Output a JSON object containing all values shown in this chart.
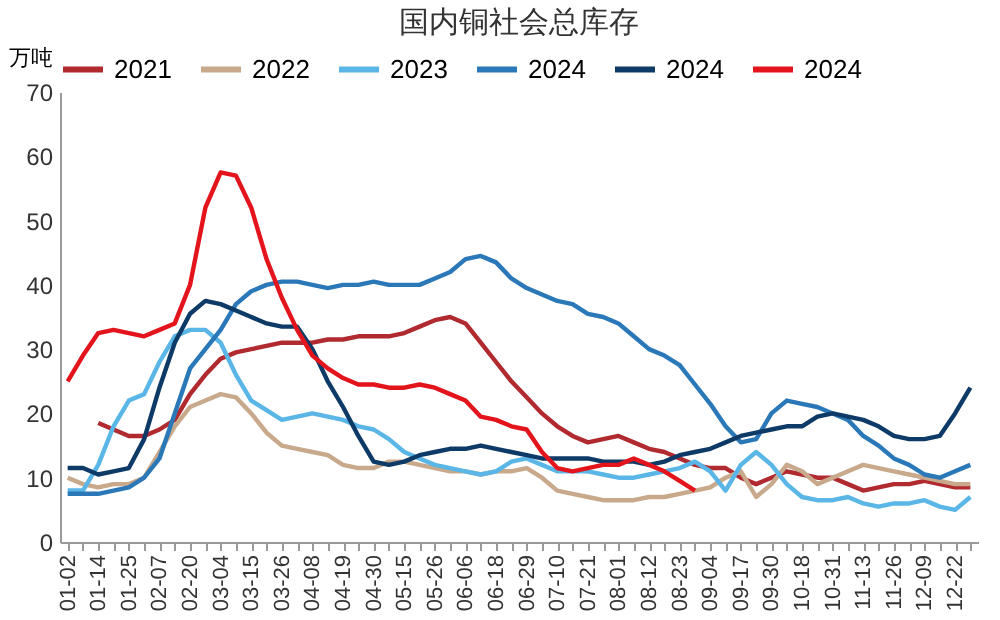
{
  "chart_data": {
    "type": "line",
    "title": "国内铜社会总库存",
    "ylabel": "万吨",
    "categories": [
      "01-02",
      null,
      "01-14",
      null,
      "01-25",
      null,
      "02-07",
      null,
      "02-20",
      null,
      "03-04",
      null,
      "03-15",
      null,
      "03-26",
      null,
      "04-08",
      null,
      "04-19",
      null,
      "04-30",
      null,
      "05-15",
      null,
      "05-26",
      null,
      "06-06",
      null,
      "06-18",
      null,
      "06-29",
      null,
      "07-10",
      null,
      "07-21",
      null,
      "08-01",
      null,
      "08-12",
      null,
      "08-23",
      null,
      "09-04",
      null,
      "09-17",
      null,
      "09-30",
      null,
      "10-18",
      null,
      "10-31",
      null,
      "11-13",
      null,
      "11-26",
      null,
      "12-09",
      null,
      "12-22",
      null
    ],
    "series": [
      {
        "name": "2021",
        "color": "#b02a30",
        "values": [
          null,
          null,
          18.5,
          17.5,
          16.5,
          16.5,
          17.5,
          19,
          23,
          26,
          28.5,
          29.5,
          30,
          30.5,
          31,
          31,
          31,
          31.5,
          31.5,
          32,
          32,
          32,
          32.5,
          33.5,
          34.5,
          35,
          34,
          31,
          28,
          25,
          22.5,
          20,
          18,
          16.5,
          15.5,
          16,
          16.5,
          15.5,
          14.5,
          14,
          13,
          12,
          11.5,
          11.5,
          10,
          9,
          10,
          11,
          10.5,
          10,
          10,
          9,
          8,
          8.5,
          9,
          9,
          9.5,
          9,
          8.5,
          8.5
        ]
      },
      {
        "name": "2022",
        "color": "#c8a98c",
        "values": [
          10,
          9,
          8.5,
          9,
          9,
          10,
          14,
          18,
          21,
          22,
          23,
          22.5,
          20,
          17,
          15,
          14.5,
          14,
          13.5,
          12,
          11.5,
          11.5,
          12.5,
          12.5,
          12,
          11.5,
          11,
          11,
          10.5,
          11,
          11,
          11.5,
          10,
          8,
          7.5,
          7,
          6.5,
          6.5,
          6.5,
          7,
          7,
          7.5,
          8,
          8.5,
          10,
          11,
          7,
          9,
          12,
          11,
          9,
          10,
          11,
          12,
          11.5,
          11,
          10.5,
          10,
          9.5,
          9,
          9
        ]
      },
      {
        "name": "2023",
        "color": "#5ab6e6",
        "values": [
          8,
          8,
          12,
          18,
          22,
          23,
          28,
          32,
          33,
          33,
          31,
          26,
          22,
          20.5,
          19,
          19.5,
          20,
          19.5,
          19,
          18,
          17.5,
          16,
          14,
          13,
          12,
          11.5,
          11,
          10.5,
          11,
          12.5,
          13,
          12,
          11,
          11,
          11,
          10.5,
          10,
          10,
          10.5,
          11,
          11.5,
          12.5,
          11,
          8,
          12,
          14,
          12,
          9,
          7,
          6.5,
          6.5,
          7,
          6,
          5.5,
          6,
          6,
          6.5,
          5.5,
          5,
          7
        ]
      },
      {
        "name": "2024",
        "color": "#2b78b9",
        "values": [
          7.5,
          7.5,
          7.5,
          8,
          8.5,
          10,
          13,
          20,
          27,
          30,
          33,
          37,
          39,
          40,
          40.5,
          40.5,
          40,
          39.5,
          40,
          40,
          40.5,
          40,
          40,
          40,
          41,
          42,
          44,
          44.5,
          43.5,
          41,
          39.5,
          38.5,
          37.5,
          37,
          35.5,
          35,
          34,
          32,
          30,
          29,
          27.5,
          24.5,
          21.5,
          18,
          15.5,
          16,
          20,
          22,
          21.5,
          21,
          20,
          19,
          16.5,
          15,
          13,
          12,
          10.5,
          10,
          11,
          12
        ]
      },
      {
        "name": "2024",
        "color": "#0e3a67",
        "values": [
          11.5,
          11.5,
          10.5,
          11,
          11.5,
          16,
          24,
          31,
          35.5,
          37.5,
          37,
          36,
          35,
          34,
          33.5,
          33.5,
          30,
          25,
          21,
          16.5,
          12.5,
          12,
          12.5,
          13.5,
          14,
          14.5,
          14.5,
          15,
          14.5,
          14,
          13.5,
          13,
          13,
          13,
          13,
          12.5,
          12.5,
          12.5,
          12,
          12.5,
          13.5,
          14,
          14.5,
          15.5,
          16.5,
          17,
          17.5,
          18,
          18,
          19.5,
          20,
          19.5,
          19,
          18,
          16.5,
          16,
          16,
          16.5,
          20,
          24
        ]
      },
      {
        "name": "2024",
        "color": "#e3141c",
        "values": [
          25,
          29,
          32.5,
          33,
          32.5,
          32,
          33,
          34,
          40,
          52,
          57.5,
          57,
          52,
          44,
          38,
          33,
          29,
          27,
          25.5,
          24.5,
          24.5,
          24,
          24,
          24.5,
          24,
          23,
          22,
          19.5,
          19,
          18,
          17.5,
          14,
          11.5,
          11,
          11.5,
          12,
          12,
          13,
          12,
          11,
          9.5,
          8,
          null,
          null,
          null,
          null,
          null,
          null,
          null,
          null,
          null,
          null,
          null,
          null,
          null,
          null,
          null,
          null,
          null,
          null
        ]
      }
    ],
    "ylim": [
      0,
      70
    ],
    "yticks": [
      0,
      10,
      20,
      30,
      40,
      50,
      60,
      70
    ],
    "legend": "top",
    "grid": false
  }
}
